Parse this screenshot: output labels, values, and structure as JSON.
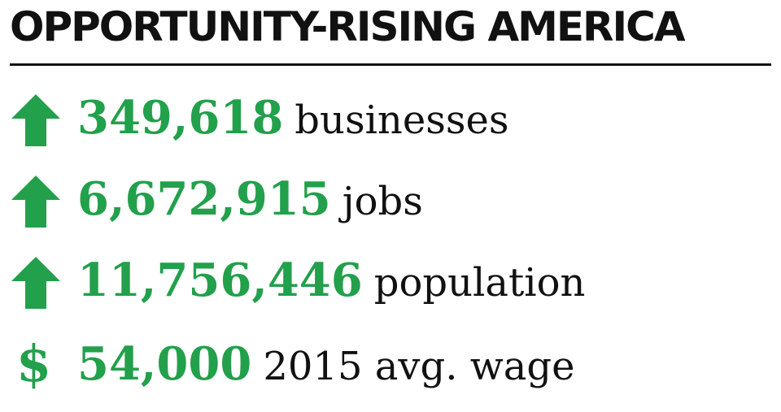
{
  "title": "OPPORTUNITY-RISING AMERICA",
  "stats": [
    {
      "value": "349,618",
      "label": "businesses"
    },
    {
      "value": "6,672,915",
      "label": "jobs"
    },
    {
      "value": "11,756,446",
      "label": "population"
    },
    {
      "symbol": "$",
      "value": "54,000",
      "label": "2015 avg. wage"
    }
  ]
}
